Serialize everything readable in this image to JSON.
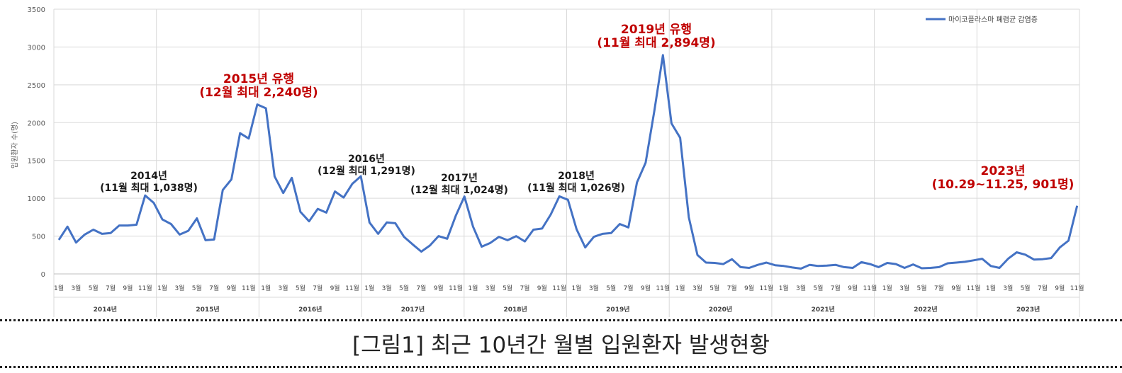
{
  "caption": "[그림1] 최근 10년간 월별 입원환자 발생현황",
  "chart_data": {
    "type": "line",
    "ylabel": "입원환자 수(명)",
    "ylim": [
      0,
      3500
    ],
    "yticks": [
      0,
      500,
      1000,
      1500,
      2000,
      2500,
      3000,
      3500
    ],
    "grid": "horizontal",
    "legend_position": "top-right",
    "color": "#4472c4",
    "years": [
      "2014년",
      "2015년",
      "2016년",
      "2017년",
      "2018년",
      "2019년",
      "2020년",
      "2021년",
      "2022년",
      "2023년"
    ],
    "month_tick_labels": [
      "1월",
      "3월",
      "5월",
      "7월",
      "9월",
      "11월"
    ],
    "series": [
      {
        "name": "마이코플라스마 폐렴균 감염증",
        "values": [
          450,
          625,
          415,
          520,
          585,
          530,
          540,
          640,
          640,
          650,
          1038,
          940,
          720,
          660,
          520,
          570,
          735,
          445,
          455,
          1110,
          1250,
          1860,
          1790,
          2240,
          2190,
          1290,
          1070,
          1270,
          820,
          695,
          860,
          810,
          1090,
          1010,
          1190,
          1291,
          680,
          530,
          680,
          670,
          490,
          390,
          295,
          375,
          500,
          465,
          770,
          1024,
          625,
          360,
          410,
          490,
          445,
          500,
          430,
          585,
          600,
          785,
          1026,
          980,
          590,
          350,
          490,
          530,
          540,
          660,
          615,
          1210,
          1470,
          2150,
          2894,
          1990,
          1800,
          750,
          250,
          150,
          145,
          130,
          195,
          90,
          80,
          120,
          150,
          115,
          105,
          85,
          70,
          120,
          105,
          110,
          120,
          90,
          80,
          155,
          130,
          90,
          145,
          130,
          80,
          125,
          75,
          80,
          90,
          140,
          150,
          160,
          180,
          200,
          105,
          80,
          200,
          285,
          255,
          190,
          195,
          210,
          350,
          440,
          901
        ]
      }
    ],
    "annotations": [
      {
        "lines": [
          "2014년",
          "(11월 최대 1,038명)"
        ],
        "color": "black"
      },
      {
        "lines": [
          "2015년 유행",
          "(12월 최대 2,240명)"
        ],
        "color": "red"
      },
      {
        "lines": [
          "2016년",
          "(12월 최대 1,291명)"
        ],
        "color": "black"
      },
      {
        "lines": [
          "2017년",
          "(12월 최대 1,024명)"
        ],
        "color": "black"
      },
      {
        "lines": [
          "2018년",
          "(11월 최대 1,026명)"
        ],
        "color": "black"
      },
      {
        "lines": [
          "2019년 유행",
          "(11월 최대 2,894명)"
        ],
        "color": "red"
      },
      {
        "lines": [
          "2023년",
          "(10.29~11.25, 901명)"
        ],
        "color": "red"
      }
    ]
  }
}
